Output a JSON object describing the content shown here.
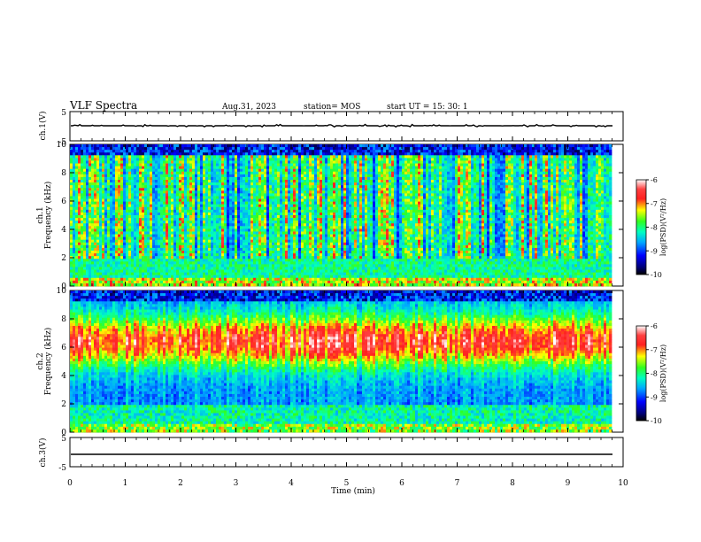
{
  "header": {
    "title": "VLF Spectra",
    "date": "Aug.31, 2023",
    "station": "station= MOS",
    "start": "start  UT  =   15: 30: 1"
  },
  "chart_data": [
    {
      "type": "line",
      "panel": "ch1-waveform",
      "ylabel": "ch.1(V)",
      "ylim": [
        -5,
        5
      ],
      "yticks": [
        "5",
        "-5"
      ],
      "xlim": [
        0,
        10
      ],
      "series": [
        {
          "values_level": 0
        }
      ]
    },
    {
      "type": "heatmap",
      "panel": "ch1-spectrogram",
      "ylabel": "ch.1\nFrequency (kHz)",
      "ylim": [
        0,
        10
      ],
      "yticks": [
        "0",
        "2",
        "4",
        "6",
        "8",
        "10"
      ],
      "xlim": [
        0,
        9.85
      ],
      "colorbar": {
        "label": "log(PSD)(V²/Hz)",
        "range": [
          -10,
          -6
        ],
        "ticks": [
          "-6",
          "-7",
          "-8",
          "-9",
          "-10"
        ]
      }
    },
    {
      "type": "heatmap",
      "panel": "ch2-spectrogram",
      "ylabel": "ch.2\nFrequency (kHz)",
      "ylim": [
        0,
        10
      ],
      "yticks": [
        "0",
        "2",
        "4",
        "6",
        "8",
        "10"
      ],
      "xlim": [
        0,
        9.85
      ],
      "colorbar": {
        "label": "log(PSD)(V²/Hz)",
        "range": [
          -10,
          -6
        ],
        "ticks": [
          "-6",
          "-7",
          "-8",
          "-9",
          "-10"
        ]
      }
    },
    {
      "type": "line",
      "panel": "ch3-waveform",
      "ylabel": "ch.3(V)",
      "ylim": [
        -5,
        5
      ],
      "yticks": [
        "5",
        "-5"
      ],
      "xlim": [
        0,
        10
      ],
      "xlabel": "Time  (min)",
      "xticks": [
        "0",
        "1",
        "2",
        "3",
        "4",
        "5",
        "6",
        "7",
        "8",
        "9",
        "10"
      ],
      "series": [
        {
          "values_level": 0
        }
      ]
    }
  ],
  "labels": {
    "ch1_wave": "ch.1(V)",
    "ch1_spec_a": "ch.1",
    "ch1_spec_b": "Frequency (kHz)",
    "ch2_spec_a": "ch.2",
    "ch2_spec_b": "Frequency (kHz)",
    "ch3_wave": "ch.3(V)",
    "xlabel": "Time  (min)",
    "cbar_label": "log(PSD)(V²/Hz)"
  }
}
